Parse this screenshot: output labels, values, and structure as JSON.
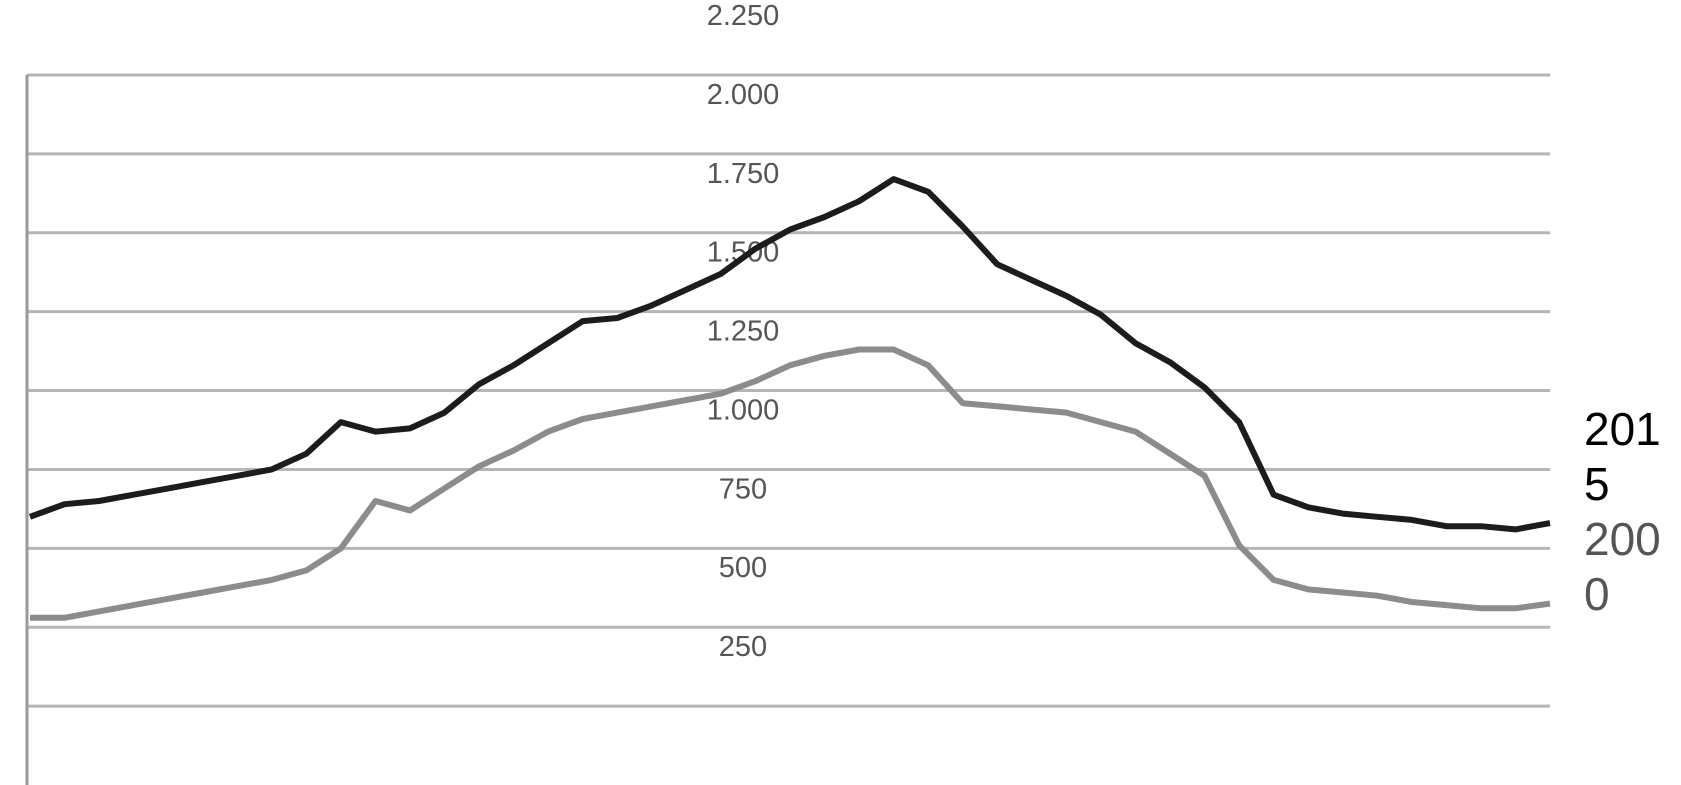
{
  "chart_data": {
    "type": "line",
    "title": "",
    "xlabel": "",
    "ylabel": "",
    "ylim": [
      0,
      2250
    ],
    "yticks": [
      "2.250",
      "2.000",
      "1.750",
      "1.500",
      "1.250",
      "1.000",
      "750",
      "500",
      "250"
    ],
    "grid": true,
    "legend_position": "right",
    "legend_items": [
      {
        "lines": [
          "201",
          "5"
        ],
        "color": "#000000"
      },
      {
        "lines": [
          "200",
          "0"
        ],
        "color": "#555555"
      }
    ],
    "series": [
      {
        "color": "#1c1c1c",
        "values": [
          850,
          890,
          900,
          920,
          940,
          960,
          980,
          1000,
          1050,
          1150,
          1120,
          1130,
          1180,
          1270,
          1330,
          1400,
          1470,
          1480,
          1520,
          1570,
          1620,
          1700,
          1760,
          1800,
          1850,
          1920,
          1880,
          1770,
          1650,
          1600,
          1550,
          1490,
          1400,
          1340,
          1260,
          1150,
          920,
          880,
          860,
          850,
          840,
          820,
          820,
          810,
          830
        ]
      },
      {
        "color": "#8c8c8c",
        "values": [
          530,
          530,
          550,
          570,
          590,
          610,
          630,
          650,
          680,
          750,
          900,
          870,
          940,
          1010,
          1060,
          1120,
          1160,
          1180,
          1200,
          1220,
          1240,
          1280,
          1330,
          1360,
          1380,
          1380,
          1330,
          1210,
          1200,
          1190,
          1180,
          1150,
          1120,
          1050,
          980,
          760,
          650,
          620,
          610,
          600,
          580,
          570,
          560,
          560,
          575
        ]
      }
    ]
  }
}
